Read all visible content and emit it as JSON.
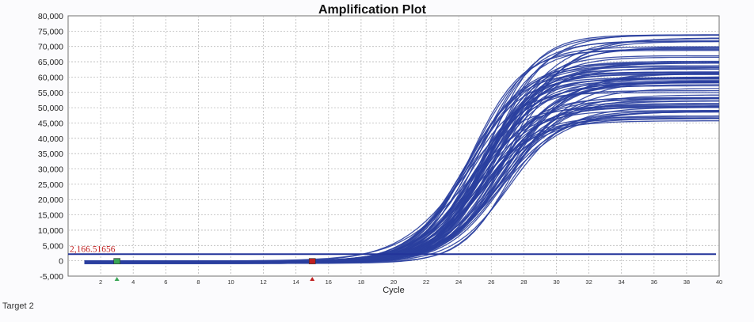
{
  "chart_data": {
    "type": "line",
    "title": "Amplification Plot",
    "xlabel": "Cycle",
    "ylabel": "",
    "xlim": [
      0,
      40
    ],
    "ylim": [
      -5000,
      80000
    ],
    "x_ticks": [
      2,
      4,
      6,
      8,
      10,
      12,
      14,
      16,
      18,
      20,
      22,
      24,
      26,
      28,
      30,
      32,
      34,
      36,
      38,
      40
    ],
    "y_ticks": [
      -5000,
      0,
      5000,
      10000,
      15000,
      20000,
      25000,
      30000,
      35000,
      40000,
      45000,
      50000,
      55000,
      60000,
      65000,
      70000,
      75000,
      80000
    ],
    "y_tick_labels": [
      "-5,000",
      "0",
      "5,000",
      "10,000",
      "15,000",
      "20,000",
      "25,000",
      "30,000",
      "35,000",
      "40,000",
      "45,000",
      "50,000",
      "55,000",
      "60,000",
      "65,000",
      "70,000",
      "75,000",
      "80,000"
    ],
    "grid": true,
    "series_color": "#2a3f9e",
    "threshold": {
      "value": 2166.51656,
      "label": "2,166.51656",
      "color": "#23349a",
      "label_color": "#c02020"
    },
    "baseline_markers": [
      {
        "cycle": 3,
        "color": "#3aa655"
      },
      {
        "cycle": 15,
        "color": "#c02020"
      }
    ],
    "curve_params": {
      "count": 80,
      "plateau_range": [
        45000,
        75000
      ],
      "midpoint_cycle_range": [
        24.3,
        27.2
      ],
      "slope_range": [
        1.45,
        2.1
      ]
    }
  },
  "footer": {
    "target_label": "Target 2"
  }
}
